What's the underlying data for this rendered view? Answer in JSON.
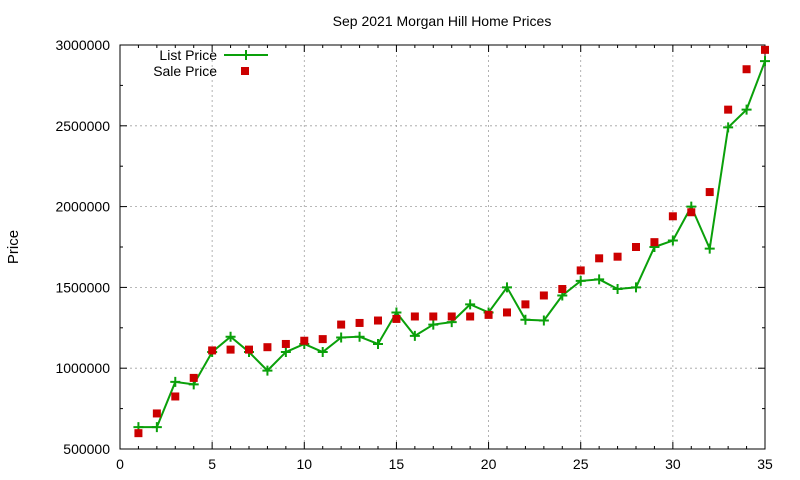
{
  "chart_data": {
    "type": "line",
    "title": "Sep 2021 Morgan Hill Home Prices",
    "xlabel": "",
    "ylabel": "Price",
    "xlim": [
      0,
      35
    ],
    "ylim": [
      500000,
      3000000
    ],
    "xticks": [
      "0",
      "5",
      "10",
      "15",
      "20",
      "25",
      "30",
      "35"
    ],
    "yticks": [
      "500000",
      "1000000",
      "1500000",
      "2000000",
      "2500000",
      "3000000"
    ],
    "grid": true,
    "legend_position": "top-left",
    "series": [
      {
        "name": "List Price",
        "style": "line+cross",
        "color": "#0aa00a",
        "x": [
          1,
          2,
          3,
          4,
          5,
          6,
          7,
          8,
          9,
          10,
          11,
          12,
          13,
          14,
          15,
          16,
          17,
          18,
          19,
          20,
          21,
          22,
          23,
          24,
          25,
          26,
          27,
          28,
          29,
          30,
          31,
          32,
          33,
          34,
          35
        ],
        "y": [
          635000,
          635000,
          915000,
          900000,
          1100000,
          1195000,
          1100000,
          985000,
          1100000,
          1150000,
          1100000,
          1190000,
          1195000,
          1150000,
          1345000,
          1200000,
          1270000,
          1285000,
          1395000,
          1345000,
          1500000,
          1300000,
          1295000,
          1450000,
          1540000,
          1550000,
          1490000,
          1500000,
          1750000,
          1790000,
          2000000,
          1740000,
          2490000,
          2600000,
          2900000
        ]
      },
      {
        "name": "Sale Price",
        "style": "points",
        "color": "#cc0000",
        "x": [
          1,
          2,
          3,
          4,
          5,
          6,
          7,
          8,
          9,
          10,
          11,
          12,
          13,
          14,
          15,
          16,
          17,
          18,
          19,
          20,
          21,
          22,
          23,
          24,
          25,
          26,
          27,
          28,
          29,
          30,
          31,
          32,
          33,
          34,
          35
        ],
        "y": [
          598000,
          720000,
          825000,
          940000,
          1110000,
          1115000,
          1115000,
          1130000,
          1150000,
          1170000,
          1180000,
          1270000,
          1280000,
          1295000,
          1305000,
          1320000,
          1320000,
          1320000,
          1320000,
          1330000,
          1345000,
          1395000,
          1450000,
          1490000,
          1605000,
          1680000,
          1690000,
          1750000,
          1780000,
          1940000,
          1965000,
          2090000,
          2600000,
          2850000,
          2970000
        ]
      }
    ]
  }
}
